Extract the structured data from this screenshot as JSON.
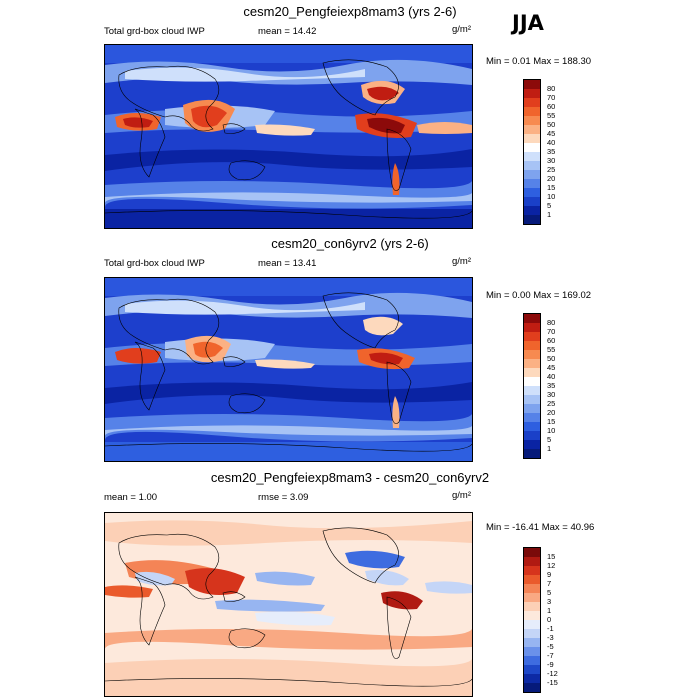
{
  "season": "JJA",
  "panels": [
    {
      "title": "cesm20_Pengfeiexp8mam3 (yrs 2-6)",
      "left_label": "Total grd-box cloud IWP",
      "center_label": "mean =  14.42",
      "units": "g/m²",
      "minmax": "Min =   0.01 Max = 188.30",
      "colorbar_levels": [
        "80",
        "70",
        "60",
        "55",
        "50",
        "45",
        "40",
        "35",
        "30",
        "25",
        "20",
        "15",
        "10",
        "5",
        "1"
      ],
      "colorbar_colors": [
        "#8c0a0a",
        "#c01d12",
        "#e13e1d",
        "#f0642c",
        "#f78a50",
        "#fbb184",
        "#fdd9bd",
        "#ffffff",
        "#cfe0fb",
        "#a7c3f5",
        "#7ea3ee",
        "#5682e8",
        "#2e5fe0",
        "#1a40c8",
        "#0a23a3",
        "#061a7a"
      ]
    },
    {
      "title": "cesm20_con6yrv2 (yrs 2-6)",
      "left_label": "Total grd-box cloud IWP",
      "center_label": "mean =  13.41",
      "units": "g/m²",
      "minmax": "Min =   0.00 Max = 169.02",
      "colorbar_levels": [
        "80",
        "70",
        "60",
        "55",
        "50",
        "45",
        "40",
        "35",
        "30",
        "25",
        "20",
        "15",
        "10",
        "5",
        "1"
      ],
      "colorbar_colors": [
        "#8c0a0a",
        "#c01d12",
        "#e13e1d",
        "#f0642c",
        "#f78a50",
        "#fbb184",
        "#fdd9bd",
        "#ffffff",
        "#cfe0fb",
        "#a7c3f5",
        "#7ea3ee",
        "#5682e8",
        "#2e5fe0",
        "#1a40c8",
        "#0a23a3",
        "#061a7a"
      ]
    },
    {
      "title": "cesm20_Pengfeiexp8mam3 - cesm20_con6yrv2",
      "left_label": "mean =   1.00",
      "center_label": "rmse =   3.09",
      "units": "g/m²",
      "minmax": "Min = -16.41 Max =  40.96",
      "colorbar_levels": [
        "15",
        "12",
        "9",
        "7",
        "5",
        "3",
        "1",
        "0",
        "-1",
        "-3",
        "-5",
        "-7",
        "-9",
        "-12",
        "-15"
      ],
      "colorbar_colors": [
        "#7a0a0a",
        "#b01a12",
        "#d6341c",
        "#ea5a2c",
        "#f48456",
        "#f9a983",
        "#fcd0b6",
        "#fde9dc",
        "#e6edfb",
        "#c4d5f7",
        "#97b5f1",
        "#6a91ea",
        "#3e6ce0",
        "#1e48c8",
        "#0d2aa5",
        "#061a7a"
      ]
    }
  ]
}
